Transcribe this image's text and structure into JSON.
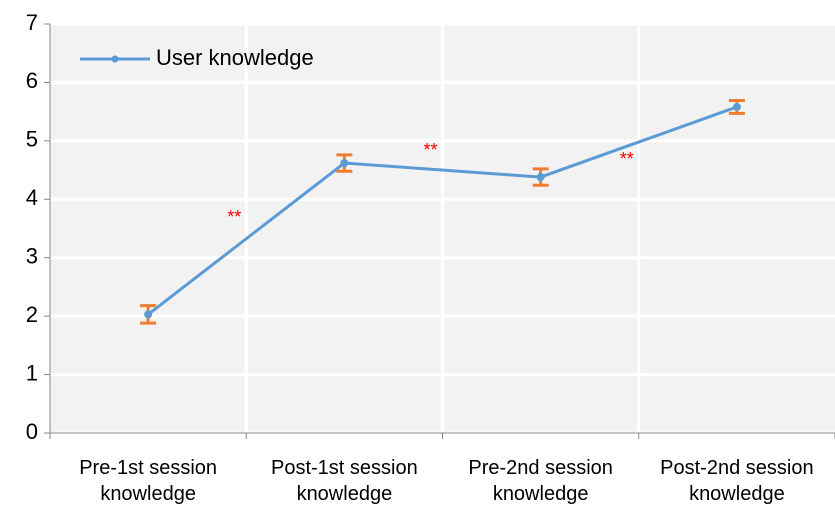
{
  "chart_data": {
    "type": "line",
    "categories": [
      "Pre-1st session knowledge",
      "Post-1st session knowledge",
      "Pre-2nd session knowledge",
      "Post-2nd session knowledge"
    ],
    "series": [
      {
        "name": "User knowledge",
        "color": "#5b9bd5",
        "error_color": "#ed7d31",
        "values": [
          2.03,
          4.62,
          4.38,
          5.58
        ],
        "errors": [
          0.15,
          0.14,
          0.14,
          0.11
        ]
      }
    ],
    "annotations": [
      "**",
      "**",
      "**"
    ],
    "annotation_color": "#ff0000",
    "ylim": [
      0,
      7
    ],
    "yticks": [
      0,
      1,
      2,
      3,
      4,
      5,
      6,
      7
    ],
    "grid": true,
    "legend": "upper left"
  }
}
